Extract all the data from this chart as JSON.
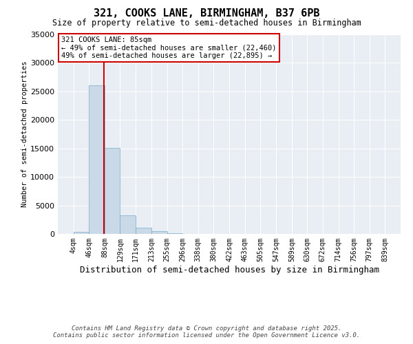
{
  "title1": "321, COOKS LANE, BIRMINGHAM, B37 6PB",
  "title2": "Size of property relative to semi-detached houses in Birmingham",
  "xlabel": "Distribution of semi-detached houses by size in Birmingham",
  "ylabel": "Number of semi-detached properties",
  "annotation_title": "321 COOKS LANE: 85sqm",
  "annotation_line1": "← 49% of semi-detached houses are smaller (22,460)",
  "annotation_line2": "49% of semi-detached houses are larger (22,895) →",
  "footer1": "Contains HM Land Registry data © Crown copyright and database right 2025.",
  "footer2": "Contains public sector information licensed under the Open Government Licence v3.0.",
  "property_size": 85,
  "bar_color": "#c9d9e8",
  "bar_edge_color": "#7aaac8",
  "vline_color": "#cc0000",
  "annotation_box_color": "#cc0000",
  "background_color": "#e8eef4",
  "bin_edges": [
    4,
    46,
    88,
    129,
    171,
    213,
    255,
    296,
    338,
    380,
    422,
    463,
    505,
    547,
    589,
    630,
    672,
    714,
    756,
    797,
    839
  ],
  "bin_labels": [
    "4sqm",
    "46sqm",
    "88sqm",
    "129sqm",
    "171sqm",
    "213sqm",
    "255sqm",
    "296sqm",
    "338sqm",
    "380sqm",
    "422sqm",
    "463sqm",
    "505sqm",
    "547sqm",
    "589sqm",
    "630sqm",
    "672sqm",
    "714sqm",
    "756sqm",
    "797sqm",
    "839sqm"
  ],
  "counts": [
    400,
    26100,
    15100,
    3200,
    1100,
    450,
    175,
    45,
    8,
    4,
    2,
    1,
    1,
    0,
    0,
    0,
    0,
    0,
    0,
    0
  ],
  "ylim": [
    0,
    35000
  ],
  "yticks": [
    0,
    5000,
    10000,
    15000,
    20000,
    25000,
    30000,
    35000
  ]
}
